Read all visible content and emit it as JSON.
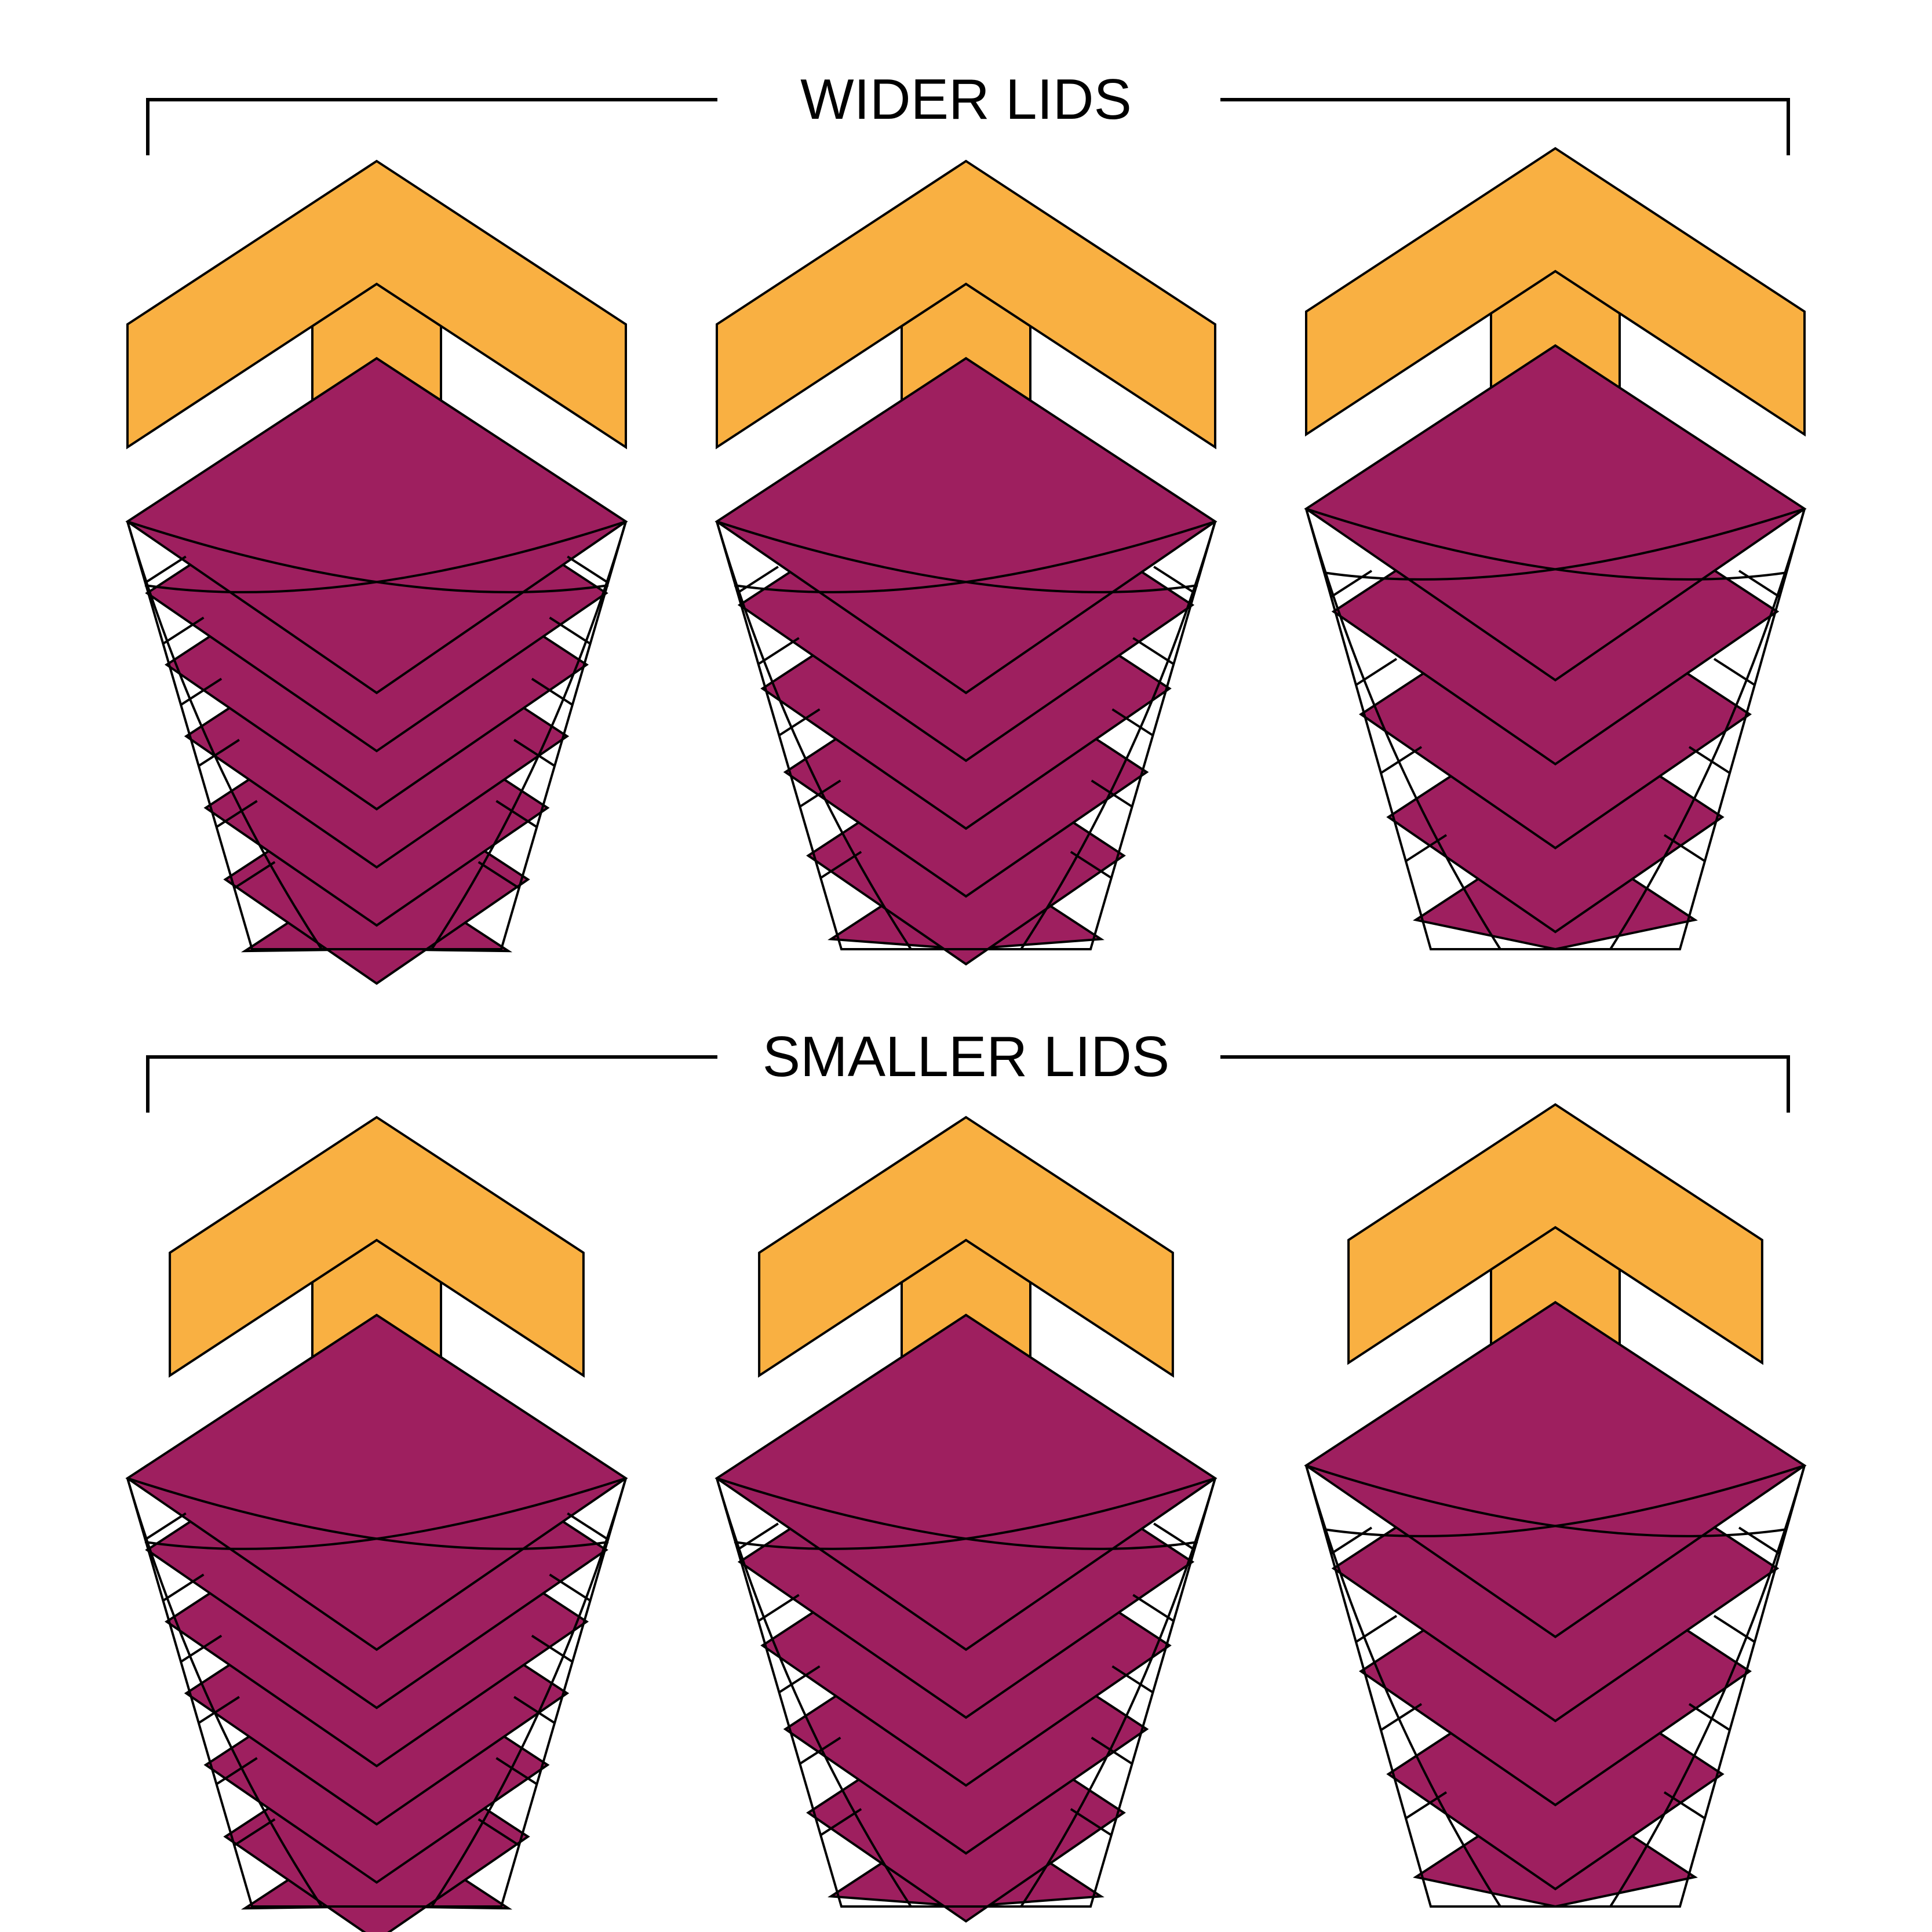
{
  "sections": [
    {
      "title": "WIDER LIDS",
      "variants": [
        {
          "lid_width": 1.0,
          "rows": 6
        },
        {
          "lid_width": 1.0,
          "rows": 5
        },
        {
          "lid_width": 1.0,
          "rows": 4
        }
      ]
    },
    {
      "title": "SMALLER LIDS",
      "variants": [
        {
          "lid_width": 0.83,
          "rows": 6
        },
        {
          "lid_width": 0.83,
          "rows": 5
        },
        {
          "lid_width": 0.83,
          "rows": 4
        }
      ]
    }
  ],
  "colors": {
    "lid": "#F9B042",
    "chevron": "#9E1F5F",
    "line": "#000000",
    "background": "#FFFFFF"
  }
}
